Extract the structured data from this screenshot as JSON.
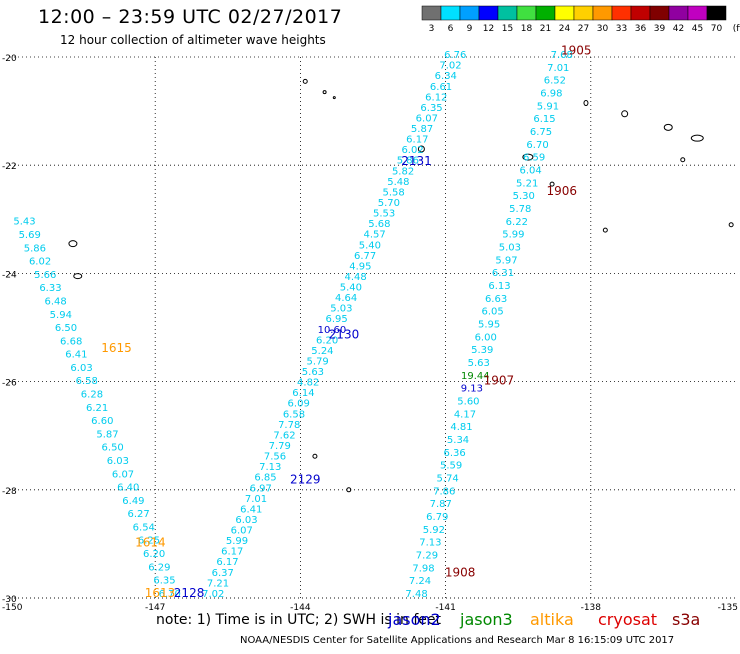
{
  "header": {
    "title": "12:00 – 23:59 UTC 02/27/2017",
    "subtitle": "12 hour collection of altimeter wave heights"
  },
  "colorbar": {
    "labels": [
      "3",
      "6",
      "9",
      "12",
      "15",
      "18",
      "21",
      "24",
      "27",
      "30",
      "33",
      "36",
      "39",
      "42",
      "45",
      "70",
      "(ft)"
    ],
    "colors": [
      "#707070",
      "#00e0ff",
      "#00a0ff",
      "#0000ff",
      "#00c0a0",
      "#40e040",
      "#00b000",
      "#ffff00",
      "#ffd000",
      "#ff9900",
      "#ff3000",
      "#c00000",
      "#800000",
      "#9000a0",
      "#c000c0",
      "#000000"
    ]
  },
  "footer": {
    "note": "note: 1) Time is in UTC; 2) SWH is in feet",
    "credit": "NOAA/NESDIS Center for Satellite Applications and Research   Mar  8 16:15:09 UTC 2017",
    "legend": [
      {
        "label": "jason2",
        "color": "#0000cc"
      },
      {
        "label": "jason3",
        "color": "#008800"
      },
      {
        "label": "altika",
        "color": "#ff9900"
      },
      {
        "label": "cryosat",
        "color": "#dd0000"
      },
      {
        "label": "s3a",
        "color": "#880000"
      }
    ]
  },
  "chart_data": {
    "type": "scatter",
    "title": "12:00 – 23:59 UTC 02/27/2017",
    "xlabel": "",
    "ylabel": "",
    "xlim": [
      -150,
      -135
    ],
    "ylim": [
      -30,
      -20
    ],
    "x_ticks": [
      -150,
      -147,
      -144,
      -141,
      -138,
      -135
    ],
    "y_ticks": [
      -20,
      -22,
      -24,
      -26,
      -28,
      -30
    ],
    "grid": true,
    "units": "ft",
    "tracks": [
      {
        "name": "1615/1614/1613",
        "color": "#00ccee",
        "start": [
          -149.7,
          -23.1
        ],
        "end": [
          -146.7,
          -29.98
        ],
        "values": [
          "5.43",
          "5.69",
          "5.86",
          "6.02",
          "5.66",
          "6.33",
          "6.48",
          "5.94",
          "6.50",
          "6.68",
          "6.41",
          "6.03",
          "6.58",
          "6.28",
          "6.21",
          "6.60",
          "5.87",
          "6.50",
          "6.03",
          "6.07",
          "6.40",
          "6.49",
          "6.27",
          "6.54",
          "6.25",
          "6.20",
          "6.29",
          "6.35",
          "6.70"
        ]
      },
      {
        "name": "2129/2128/2130/2131",
        "color": "#00ccee",
        "start": [
          -140.8,
          -20.02
        ],
        "end": [
          -145.8,
          -29.98
        ],
        "values": [
          "6.76",
          "7.02",
          "6.34",
          "6.61",
          "6.12",
          "6.35",
          "6.07",
          "5.87",
          "6.17",
          "6.02",
          "5.86",
          "5.82",
          "5.48",
          "5.58",
          "5.70",
          "5.53",
          "5.68",
          "4.57",
          "5.40",
          "6.77",
          "4.95",
          "4.48",
          "5.40",
          "4.64",
          "5.03",
          "6.95",
          "10.60",
          "6.20",
          "5.24",
          "5.79",
          "5.63",
          "4.82",
          "6.14",
          "6.09",
          "6.58",
          "7.78",
          "7.62",
          "7.79",
          "7.56",
          "7.13",
          "6.85",
          "6.97",
          "7.01",
          "6.41",
          "6.03",
          "6.07",
          "5.99",
          "6.17",
          "6.17",
          "6.37",
          "7.21",
          "7.02"
        ]
      },
      {
        "name": "1905/1906/1907/1908",
        "color": "#00ccee",
        "start": [
          -138.6,
          -20.02
        ],
        "end": [
          -141.6,
          -29.98
        ],
        "values": [
          "7.68",
          "7.01",
          "6.52",
          "6.98",
          "5.91",
          "6.15",
          "6.75",
          "6.70",
          "6.59",
          "6.04",
          "5.21",
          "5.30",
          "5.78",
          "6.22",
          "5.99",
          "5.03",
          "5.97",
          "6.31",
          "6.13",
          "6.63",
          "6.05",
          "5.95",
          "6.00",
          "5.39",
          "5.63",
          "19.44",
          "9.13",
          "5.60",
          "4.17",
          "4.81",
          "5.34",
          "6.36",
          "5.59",
          "5.74",
          "7.86",
          "7.87",
          "6.79",
          "5.92",
          "7.13",
          "7.29",
          "7.98",
          "7.24",
          "7.48"
        ]
      }
    ],
    "highlights": [
      {
        "track": 1,
        "index": 26,
        "value": "10.60",
        "color": "#0000cc"
      },
      {
        "track": 2,
        "index": 25,
        "value": "19.44",
        "color": "#008800"
      },
      {
        "track": 2,
        "index": 26,
        "value": "9.13",
        "color": "#0000cc"
      }
    ],
    "time_labels": [
      {
        "label": "1615",
        "lon": -147.8,
        "lat": -25.45,
        "color": "#ff9900"
      },
      {
        "label": "1614",
        "lon": -147.1,
        "lat": -29.05,
        "color": "#ff9900"
      },
      {
        "label": "1613",
        "lon": -146.9,
        "lat": -29.98,
        "color": "#ff9900"
      },
      {
        "label": "2131",
        "lon": -141.6,
        "lat": -22.0,
        "color": "#0000cc"
      },
      {
        "label": "2130",
        "lon": -143.1,
        "lat": -25.2,
        "color": "#0000cc"
      },
      {
        "label": "2129",
        "lon": -143.9,
        "lat": -27.88,
        "color": "#0000cc"
      },
      {
        "label": "2128",
        "lon": -146.3,
        "lat": -29.98,
        "color": "#0000cc"
      },
      {
        "label": "1905",
        "lon": -138.3,
        "lat": -19.95,
        "color": "#880000"
      },
      {
        "label": "1906",
        "lon": -138.6,
        "lat": -22.55,
        "color": "#880000"
      },
      {
        "label": "1907",
        "lon": -139.9,
        "lat": -26.05,
        "color": "#880000"
      },
      {
        "label": "1908",
        "lon": -140.7,
        "lat": -29.6,
        "color": "#880000"
      }
    ]
  }
}
